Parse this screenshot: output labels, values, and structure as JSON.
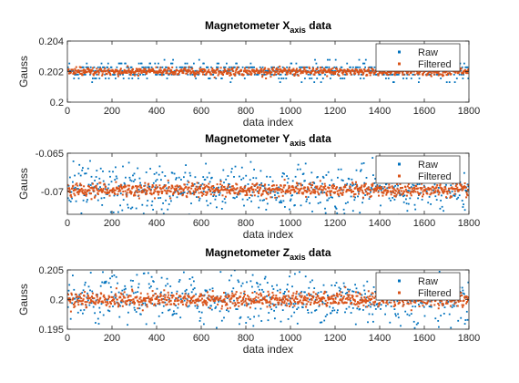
{
  "chart_data": [
    {
      "type": "scatter",
      "title": {
        "main": "Magnetometer X",
        "sub": "axis",
        "suffix": " data"
      },
      "xlabel": "data index",
      "ylabel": "Gauss",
      "xlim": [
        0,
        1800
      ],
      "ylim": [
        0.2,
        0.204
      ],
      "xticks": [
        "0",
        "200",
        "400",
        "600",
        "800",
        "1000",
        "1200",
        "1400",
        "1600",
        "1800"
      ],
      "yticks": [
        "0.2",
        "0.202",
        "0.204"
      ],
      "legend": {
        "placement": "top-right",
        "entries": [
          "Raw",
          "Filtered"
        ]
      },
      "series": [
        {
          "name": "Raw",
          "color": "#0072BD",
          "mean": 0.202,
          "levels": [
            0.20131,
            0.20155,
            0.2018,
            0.20204,
            0.20228,
            0.20253,
            0.20277
          ],
          "n": 1800
        },
        {
          "name": "Filtered",
          "color": "#D95319",
          "mean": 0.202,
          "amplitude": 0.00018,
          "n": 1800
        }
      ]
    },
    {
      "type": "scatter",
      "title": {
        "main": "Magnetometer Y",
        "sub": "axis",
        "suffix": " data"
      },
      "xlabel": "data index",
      "ylabel": "Gauss",
      "xlim": [
        0,
        1800
      ],
      "ylim": [
        -0.073,
        -0.065
      ],
      "xticks": [
        "0",
        "200",
        "400",
        "600",
        "800",
        "1000",
        "1200",
        "1400",
        "1600",
        "1800"
      ],
      "yticks": [
        "-0.07",
        "-0.065"
      ],
      "legend": {
        "placement": "top-right",
        "entries": [
          "Raw",
          "Filtered"
        ]
      },
      "series": [
        {
          "name": "Raw",
          "color": "#0072BD",
          "mean": -0.0698,
          "spread": 0.0016,
          "n": 1800
        },
        {
          "name": "Filtered",
          "color": "#D95319",
          "mean": -0.0698,
          "amplitude": 0.0006,
          "n": 1800
        }
      ]
    },
    {
      "type": "scatter",
      "title": {
        "main": "Magnetometer Z",
        "sub": "axis",
        "suffix": " data"
      },
      "xlabel": "data index",
      "ylabel": "Gauss",
      "xlim": [
        0,
        1800
      ],
      "ylim": [
        0.195,
        0.205
      ],
      "xticks": [
        "0",
        "200",
        "400",
        "600",
        "800",
        "1000",
        "1200",
        "1400",
        "1600",
        "1800"
      ],
      "yticks": [
        "0.195",
        "0.2",
        "0.205"
      ],
      "legend": {
        "placement": "top-right",
        "entries": [
          "Raw",
          "Filtered"
        ]
      },
      "series": [
        {
          "name": "Raw",
          "color": "#0072BD",
          "mean": 0.2,
          "spread": 0.0022,
          "n": 1800
        },
        {
          "name": "Filtered",
          "color": "#D95319",
          "mean": 0.2,
          "amplitude": 0.0009,
          "n": 1800
        }
      ]
    }
  ]
}
